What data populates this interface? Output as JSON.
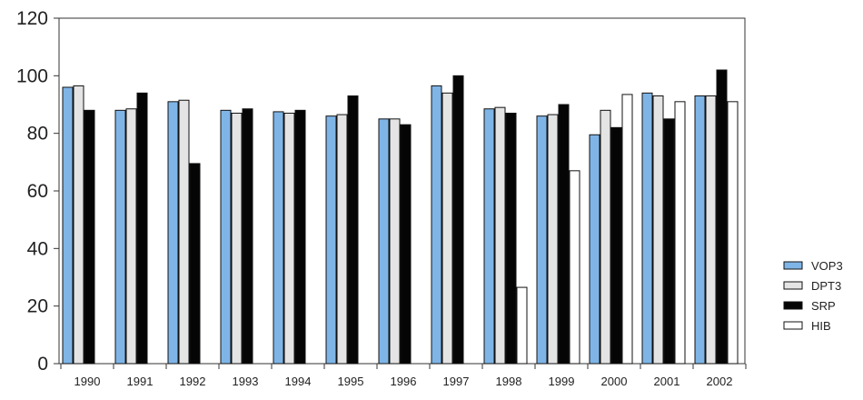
{
  "chart_data": {
    "type": "bar",
    "title": "",
    "xlabel": "",
    "ylabel": "",
    "ylim": [
      0,
      120
    ],
    "yticks": [
      0,
      20,
      40,
      60,
      80,
      100,
      120
    ],
    "grid": false,
    "legend_position": "right",
    "categories": [
      "1990",
      "1991",
      "1992",
      "1993",
      "1994",
      "1995",
      "1996",
      "1997",
      "1998",
      "1999",
      "2000",
      "2001",
      "2002"
    ],
    "series": [
      {
        "name": "VOP3",
        "color": "#7fb5e6",
        "values": [
          96,
          88,
          91,
          88,
          87.5,
          86,
          85,
          96.5,
          88.5,
          86,
          79.5,
          94,
          93
        ]
      },
      {
        "name": "DPT3",
        "color": "#e4e4e4",
        "values": [
          96.5,
          88.5,
          91.5,
          87,
          87,
          86.5,
          85,
          94,
          89,
          86.5,
          88,
          93,
          93
        ]
      },
      {
        "name": "SRP",
        "color": "#050505",
        "values": [
          88,
          94,
          69.5,
          88.5,
          88,
          93,
          83,
          100,
          87,
          90,
          82,
          85,
          102
        ]
      },
      {
        "name": "HIB",
        "color": "#ffffff",
        "values": [
          null,
          null,
          null,
          null,
          null,
          null,
          null,
          null,
          26.5,
          67,
          93.5,
          91,
          91
        ]
      }
    ]
  }
}
